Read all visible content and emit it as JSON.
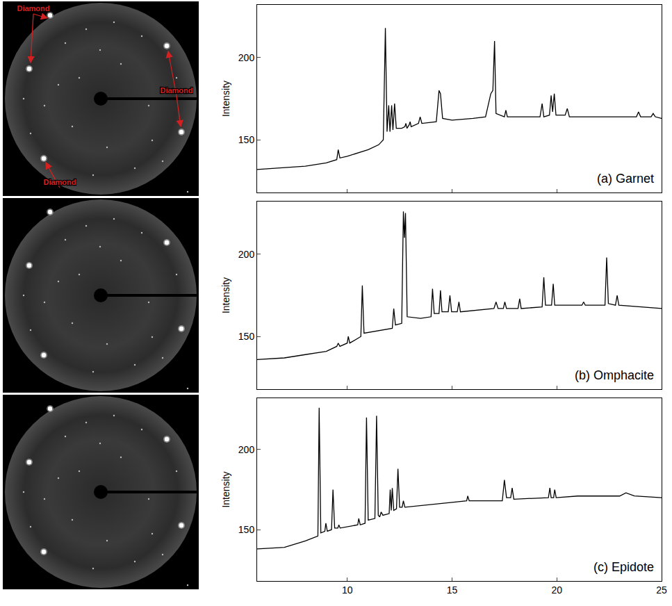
{
  "chart_data": [
    {
      "type": "line",
      "title": "(a) Garnet",
      "y_label": "Intensity",
      "color": "#000000",
      "xlim": [
        5.7,
        25
      ],
      "xticks": [
        10,
        15,
        20,
        25
      ],
      "ylim": [
        118,
        232
      ],
      "yticks": [
        150,
        200
      ],
      "tick_labels": "y",
      "x": [
        5.7,
        7,
        8,
        9,
        9.5,
        9.57,
        9.65,
        10,
        11,
        11.5,
        11.72,
        11.82,
        11.9,
        11.98,
        12.04,
        12.12,
        12.18,
        12.26,
        12.34,
        12.6,
        12.75,
        12.8,
        12.85,
        12.95,
        13.0,
        13.05,
        13.4,
        13.48,
        13.56,
        14.25,
        14.38,
        14.45,
        14.55,
        15,
        16,
        16.6,
        16.85,
        16.95,
        17.03,
        17.1,
        17.5,
        17.57,
        17.64,
        19.2,
        19.3,
        19.38,
        19.65,
        19.73,
        19.8,
        19.88,
        19.96,
        20.4,
        20.5,
        20.6,
        23.8,
        23.9,
        24.0,
        24.5,
        24.6,
        24.7,
        25
      ],
      "values": [
        132,
        133,
        134,
        136,
        138,
        144,
        139,
        140,
        144,
        147,
        150,
        218,
        155,
        171,
        155,
        171,
        156,
        172,
        157,
        157,
        158,
        160,
        157,
        159,
        161,
        158,
        160,
        164,
        160,
        161,
        180,
        178,
        163,
        162,
        163,
        164,
        178,
        180,
        210,
        166,
        164,
        168,
        164,
        164,
        172,
        164,
        165,
        177,
        167,
        178,
        165,
        165,
        169,
        164,
        164,
        167,
        164,
        164,
        166,
        164,
        163
      ]
    },
    {
      "type": "line",
      "title": "(b) Omphacite",
      "y_label": "Intensity",
      "color": "#000000",
      "xlim": [
        5.7,
        25
      ],
      "xticks": [
        10,
        15,
        20,
        25
      ],
      "ylim": [
        118,
        232
      ],
      "yticks": [
        150,
        200
      ],
      "tick_labels": "y",
      "x": [
        5.7,
        7,
        8,
        9,
        9.5,
        9.57,
        9.65,
        10,
        10.05,
        10.12,
        10.65,
        10.72,
        10.8,
        12.15,
        12.22,
        12.3,
        12.6,
        12.68,
        12.73,
        12.78,
        12.86,
        13.5,
        14.0,
        14.07,
        14.15,
        14.38,
        14.45,
        14.52,
        14.82,
        14.9,
        14.98,
        15.25,
        15.33,
        15.4,
        17.0,
        17.1,
        17.2,
        17.45,
        17.52,
        17.6,
        18.15,
        18.23,
        18.3,
        19.3,
        19.38,
        19.46,
        19.75,
        19.83,
        19.9,
        21.2,
        21.28,
        21.36,
        22.3,
        22.38,
        22.46,
        22.8,
        22.88,
        22.96,
        25
      ],
      "values": [
        136,
        137,
        139,
        141,
        144,
        146,
        144,
        146,
        150,
        146,
        150,
        181,
        152,
        155,
        167,
        157,
        158,
        226,
        210,
        225,
        162,
        161,
        162,
        179,
        164,
        164,
        178,
        165,
        165,
        175,
        165,
        165,
        171,
        165,
        167,
        171,
        167,
        167,
        171,
        167,
        167,
        173,
        167,
        168,
        186,
        169,
        169,
        182,
        169,
        169,
        171,
        169,
        169,
        198,
        170,
        169,
        175,
        169,
        167
      ]
    },
    {
      "type": "line",
      "title": "(c) Epidote",
      "y_label": "Intensity",
      "color": "#000000",
      "xlim": [
        5.7,
        25
      ],
      "xticks": [
        10,
        15,
        20,
        25
      ],
      "ylim": [
        118,
        232
      ],
      "yticks": [
        150,
        200
      ],
      "x": [
        5.7,
        7,
        8,
        8.6,
        8.66,
        8.74,
        8.93,
        8.98,
        9.05,
        9.25,
        9.32,
        9.4,
        9.55,
        9.6,
        9.66,
        10.5,
        10.55,
        10.62,
        10.85,
        10.92,
        11.0,
        11.32,
        11.4,
        11.48,
        11.55,
        11.62,
        11.7,
        12.0,
        12.05,
        12.1,
        12.15,
        12.22,
        12.35,
        12.42,
        12.5,
        12.62,
        12.68,
        12.75,
        15.0,
        15.7,
        15.75,
        15.82,
        17.4,
        17.5,
        17.6,
        17.8,
        17.87,
        17.95,
        19.6,
        19.67,
        19.73,
        19.85,
        19.9,
        19.97,
        21,
        23.0,
        23.3,
        23.7,
        25
      ],
      "values": [
        138,
        139,
        143,
        146,
        226,
        148,
        149,
        154,
        149,
        150,
        175,
        151,
        151,
        153,
        151,
        153,
        157,
        153,
        154,
        220,
        156,
        157,
        221,
        159,
        158,
        161,
        159,
        160,
        175,
        162,
        176,
        162,
        163,
        188,
        164,
        164,
        168,
        164,
        167,
        168,
        171,
        168,
        168,
        181,
        170,
        170,
        176,
        169,
        170,
        176,
        170,
        170,
        175,
        170,
        171,
        171,
        173,
        171,
        170
      ]
    }
  ],
  "diffraction_images": [
    {
      "labels": [
        "Diamond",
        "Diamond",
        "Diamond"
      ]
    },
    {
      "labels": []
    },
    {
      "labels": []
    }
  ]
}
